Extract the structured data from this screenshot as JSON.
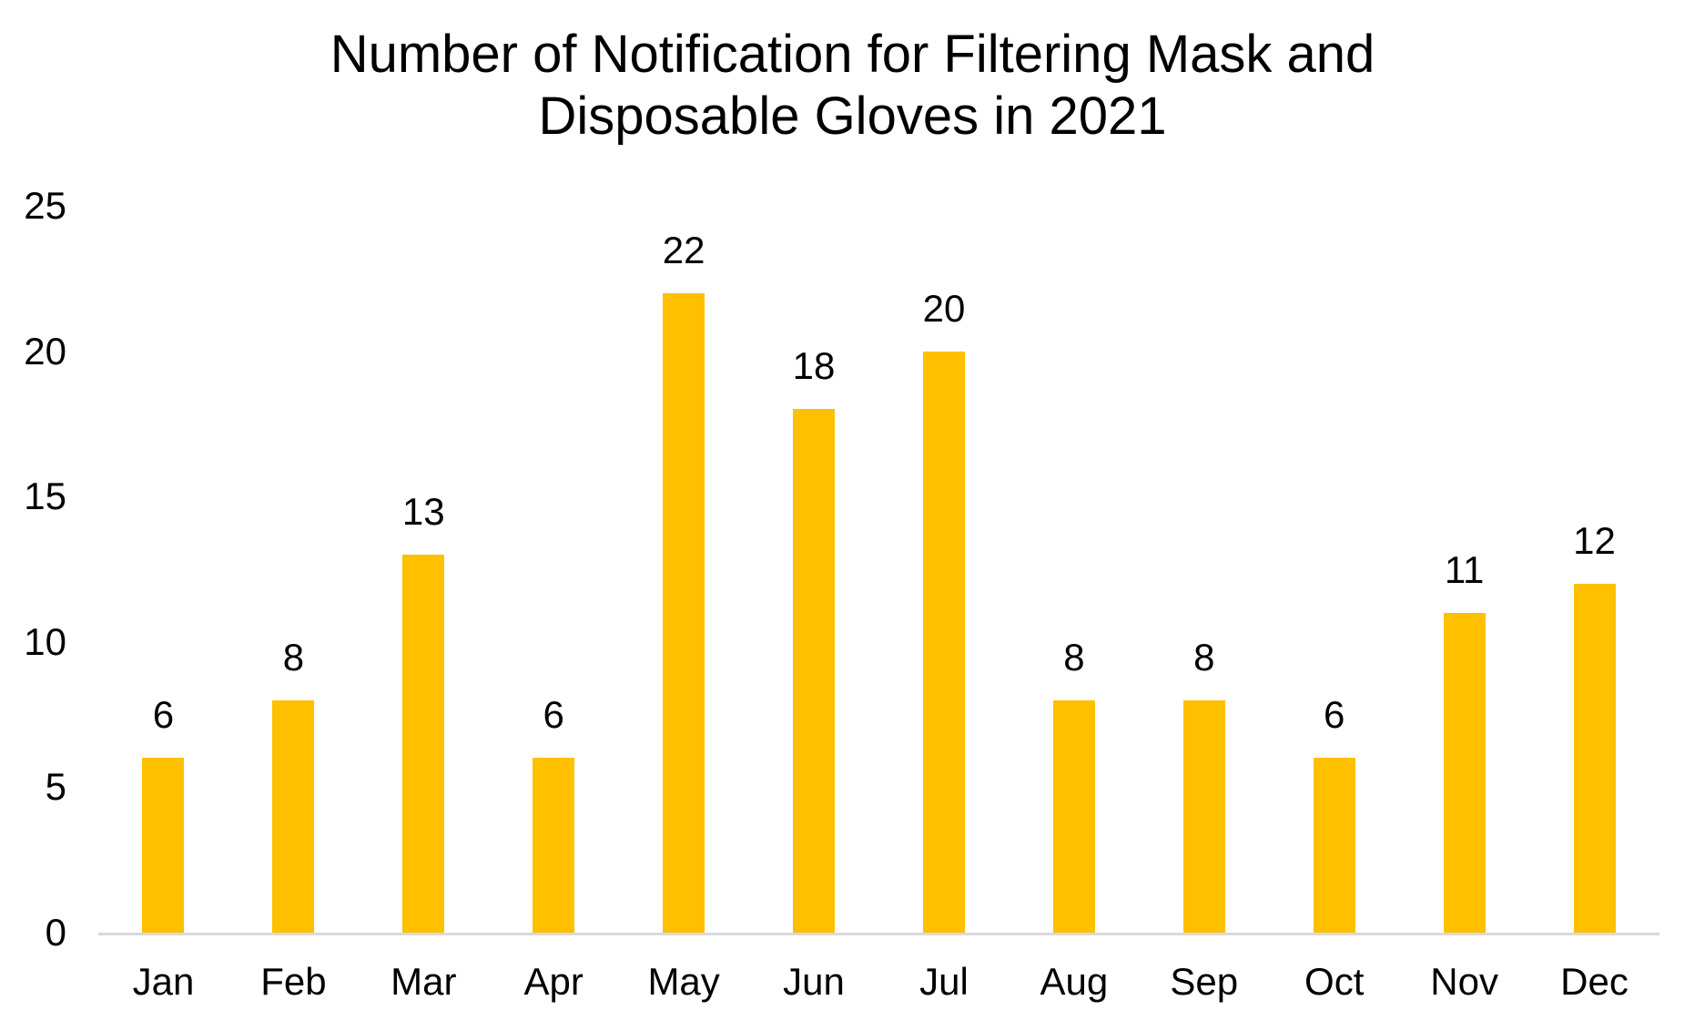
{
  "chart_data": {
    "type": "bar",
    "title": "Number of Notification for Filtering Mask and\nDisposable Gloves in 2021",
    "categories": [
      "Jan",
      "Feb",
      "Mar",
      "Apr",
      "May",
      "Jun",
      "Jul",
      "Aug",
      "Sep",
      "Oct",
      "Nov",
      "Dec"
    ],
    "values": [
      6,
      8,
      13,
      6,
      22,
      18,
      20,
      8,
      8,
      6,
      11,
      12
    ],
    "data_labels": [
      6,
      8,
      13,
      6,
      22,
      18,
      20,
      8,
      8,
      6,
      11,
      12
    ],
    "xlabel": "",
    "ylabel": "",
    "ylim": [
      0,
      25
    ],
    "yticks": [
      0,
      5,
      10,
      15,
      20,
      25
    ],
    "grid": false,
    "legend": false,
    "legend_position": "none",
    "bar_color": "#FFC000",
    "axis_line_color": "#D9D9D9",
    "text_color": "#000000",
    "background_color": "#FFFFFF"
  }
}
